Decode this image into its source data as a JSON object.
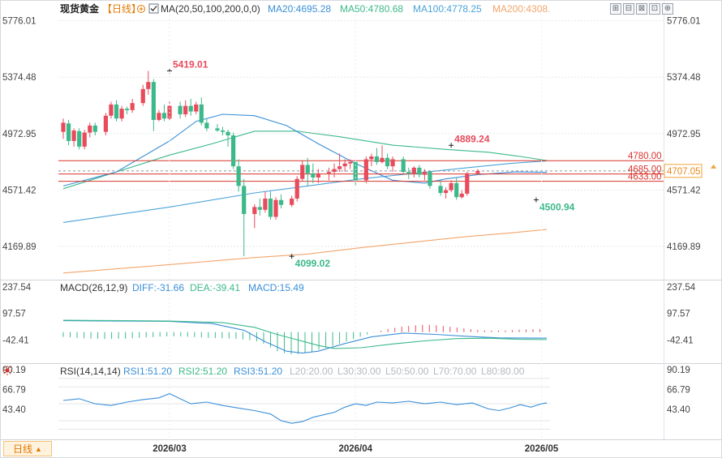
{
  "instrument": "现货黄金",
  "period": "日线",
  "ma_legend": {
    "label": "MA(20,50,100,200,0,0)",
    "items": [
      {
        "text": "MA20:4695.28",
        "color": "#3a8fd8"
      },
      {
        "text": "MA50:4780.68",
        "color": "#3cb98a"
      },
      {
        "text": "MA100:4778.25",
        "color": "#4aa3d9"
      },
      {
        "text": "MA200:4308.",
        "color": "#f3a56b"
      }
    ]
  },
  "macd_legend": {
    "label": "MACD(26,12,9)",
    "items": [
      {
        "text": "DIFF:-31.66",
        "color": "#3a8fd8"
      },
      {
        "text": "DEA:-39.41",
        "color": "#3cb98a"
      },
      {
        "text": "MACD:15.49",
        "color": "#3a8fd8"
      }
    ]
  },
  "rsi_legend": {
    "label": "RSI(14,14,14)",
    "items": [
      {
        "text": "RSI1:51.20",
        "color": "#3a8fd8"
      },
      {
        "text": "RSI2:51.20",
        "color": "#3cb98a"
      },
      {
        "text": "RSI3:51.20",
        "color": "#3a8fd8"
      },
      {
        "text": "L20:20.00",
        "color": "#b5b9be"
      },
      {
        "text": "L30:30.00",
        "color": "#b5b9be"
      },
      {
        "text": "L50:50.00",
        "color": "#b5b9be"
      },
      {
        "text": "L70:70.00",
        "color": "#b5b9be"
      },
      {
        "text": "L80:80.00",
        "color": "#b5b9be"
      }
    ]
  },
  "period_button": {
    "label": "日线",
    "arrow": "▲"
  },
  "toolbar_icons": [
    "zoom-in-icon",
    "zoom-out-icon",
    "fit-icon",
    "fullscreen-icon",
    "settings-icon"
  ],
  "colors": {
    "up": "#e84b5c",
    "down": "#3cb98a",
    "grid": "#e6e8ec",
    "line_red": "#d9342b"
  },
  "chart_data": {
    "type": "candlestick",
    "x_ticks": [
      "2026/03",
      "2026/04",
      "2026/05"
    ],
    "x_tick_index": [
      20,
      55,
      90
    ],
    "price_axis": {
      "ticks": [
        5776.01,
        5374.48,
        4972.95,
        4571.42,
        4169.89
      ],
      "ylim": [
        3950,
        5820
      ]
    },
    "candles": [
      {
        "o": 4985,
        "h": 5080,
        "l": 4935,
        "c": 5050
      },
      {
        "o": 5045,
        "h": 5070,
        "l": 4890,
        "c": 4920
      },
      {
        "o": 4920,
        "h": 5010,
        "l": 4880,
        "c": 4995
      },
      {
        "o": 4990,
        "h": 5010,
        "l": 4860,
        "c": 4880
      },
      {
        "o": 4880,
        "h": 5000,
        "l": 4860,
        "c": 4980
      },
      {
        "o": 4980,
        "h": 5050,
        "l": 4945,
        "c": 5030
      },
      {
        "o": 5030,
        "h": 5050,
        "l": 4960,
        "c": 4985
      },
      {
        "o": 4985,
        "h": 5120,
        "l": 4960,
        "c": 5100
      },
      {
        "o": 5100,
        "h": 5200,
        "l": 5080,
        "c": 5180
      },
      {
        "o": 5180,
        "h": 5210,
        "l": 5060,
        "c": 5080
      },
      {
        "o": 5080,
        "h": 5170,
        "l": 5060,
        "c": 5150
      },
      {
        "o": 5150,
        "h": 5165,
        "l": 5110,
        "c": 5140
      },
      {
        "o": 5140,
        "h": 5220,
        "l": 5120,
        "c": 5190
      },
      {
        "o": 5190,
        "h": 5320,
        "l": 5170,
        "c": 5290
      },
      {
        "o": 5290,
        "h": 5419.01,
        "l": 5250,
        "c": 5340
      },
      {
        "o": 5340,
        "h": 5360,
        "l": 4990,
        "c": 5070
      },
      {
        "o": 5070,
        "h": 5140,
        "l": 5060,
        "c": 5120
      },
      {
        "o": 5120,
        "h": 5180,
        "l": 5060,
        "c": 5080
      },
      {
        "o": 5080,
        "h": 5200,
        "l": 5060,
        "c": 5170
      },
      {
        "o": 5170,
        "h": 5200,
        "l": 5080,
        "c": 5110
      },
      {
        "o": 5110,
        "h": 5210,
        "l": 5090,
        "c": 5170
      },
      {
        "o": 5170,
        "h": 5220,
        "l": 5100,
        "c": 5130
      },
      {
        "o": 5130,
        "h": 5200,
        "l": 5110,
        "c": 5180
      },
      {
        "o": 5180,
        "h": 5230,
        "l": 5030,
        "c": 5050
      },
      {
        "o": 5050,
        "h": 5080,
        "l": 4990,
        "c": 5010
      },
      {
        "o": 5010,
        "h": 5040,
        "l": 4985,
        "c": 4995
      },
      {
        "o": 4995,
        "h": 5020,
        "l": 4960,
        "c": 4985
      },
      {
        "o": 4985,
        "h": 5000,
        "l": 4880,
        "c": 4960
      },
      {
        "o": 4960,
        "h": 4980,
        "l": 4720,
        "c": 4740
      },
      {
        "o": 4740,
        "h": 4790,
        "l": 4560,
        "c": 4600
      },
      {
        "o": 4600,
        "h": 4650,
        "l": 4099.02,
        "c": 4400
      },
      {
        "o": 4400,
        "h": 4470,
        "l": 4300,
        "c": 4450
      },
      {
        "o": 4450,
        "h": 4510,
        "l": 4390,
        "c": 4430
      },
      {
        "o": 4430,
        "h": 4560,
        "l": 4410,
        "c": 4510
      },
      {
        "o": 4510,
        "h": 4560,
        "l": 4360,
        "c": 4380
      },
      {
        "o": 4380,
        "h": 4520,
        "l": 4360,
        "c": 4500
      },
      {
        "o": 4500,
        "h": 4540,
        "l": 4440,
        "c": 4465
      },
      {
        "o": 4465,
        "h": 4530,
        "l": 4450,
        "c": 4510
      },
      {
        "o": 4510,
        "h": 4670,
        "l": 4490,
        "c": 4650
      },
      {
        "o": 4650,
        "h": 4780,
        "l": 4630,
        "c": 4750
      },
      {
        "o": 4750,
        "h": 4800,
        "l": 4600,
        "c": 4690
      },
      {
        "o": 4690,
        "h": 4760,
        "l": 4620,
        "c": 4660
      },
      {
        "o": 4660,
        "h": 4720,
        "l": 4620,
        "c": 4690
      },
      {
        "o": 4690,
        "h": 4730,
        "l": 4640,
        "c": 4700
      },
      {
        "o": 4700,
        "h": 4760,
        "l": 4660,
        "c": 4720
      },
      {
        "o": 4720,
        "h": 4830,
        "l": 4700,
        "c": 4740
      },
      {
        "o": 4740,
        "h": 4790,
        "l": 4700,
        "c": 4760
      },
      {
        "o": 4760,
        "h": 4790,
        "l": 4720,
        "c": 4770
      },
      {
        "o": 4770,
        "h": 4780,
        "l": 4600,
        "c": 4640
      },
      {
        "o": 4640,
        "h": 4810,
        "l": 4620,
        "c": 4790
      },
      {
        "o": 4790,
        "h": 4830,
        "l": 4740,
        "c": 4810
      },
      {
        "o": 4810,
        "h": 4870,
        "l": 4750,
        "c": 4770
      },
      {
        "o": 4770,
        "h": 4889.24,
        "l": 4760,
        "c": 4800
      },
      {
        "o": 4800,
        "h": 4830,
        "l": 4720,
        "c": 4740
      },
      {
        "o": 4740,
        "h": 4810,
        "l": 4700,
        "c": 4790
      },
      {
        "o": 4790,
        "h": 4810,
        "l": 4690,
        "c": 4700
      },
      {
        "o": 4700,
        "h": 4730,
        "l": 4650,
        "c": 4690
      },
      {
        "o": 4690,
        "h": 4740,
        "l": 4660,
        "c": 4730
      },
      {
        "o": 4730,
        "h": 4750,
        "l": 4660,
        "c": 4680
      },
      {
        "o": 4680,
        "h": 4720,
        "l": 4640,
        "c": 4700
      },
      {
        "o": 4700,
        "h": 4710,
        "l": 4580,
        "c": 4600
      },
      {
        "o": 4600,
        "h": 4640,
        "l": 4530,
        "c": 4550
      },
      {
        "o": 4550,
        "h": 4590,
        "l": 4510,
        "c": 4570
      },
      {
        "o": 4570,
        "h": 4640,
        "l": 4555,
        "c": 4620
      },
      {
        "o": 4620,
        "h": 4660,
        "l": 4500.94,
        "c": 4520
      },
      {
        "o": 4520,
        "h": 4570,
        "l": 4510,
        "c": 4545
      },
      {
        "o": 4545,
        "h": 4700,
        "l": 4530,
        "c": 4690
      },
      {
        "o": 4690,
        "h": 4720,
        "l": 4680,
        "c": 4707
      }
    ],
    "candle_slots": [
      0,
      1,
      2,
      3,
      4,
      5,
      6,
      8,
      9,
      10,
      11,
      12,
      13,
      15,
      16,
      17,
      18,
      19,
      20,
      22,
      23,
      24,
      25,
      26,
      27,
      29,
      30,
      31,
      32,
      33,
      34,
      36,
      37,
      38,
      39,
      40,
      41,
      43,
      44,
      45,
      46,
      47,
      48,
      50,
      51,
      52,
      53,
      54,
      55,
      57,
      58,
      59,
      60,
      61,
      62,
      64,
      65,
      66,
      67,
      68,
      69,
      71,
      72,
      73,
      74,
      75,
      76,
      78
    ],
    "annotations": [
      {
        "label": "5419.01",
        "value": 5419.01,
        "slot": 20,
        "color": "#e84b5c"
      },
      {
        "label": "4889.24",
        "value": 4889.24,
        "slot": 73,
        "color": "#e84b5c"
      },
      {
        "label": "4099.02",
        "value": 4099.02,
        "slot": 43,
        "color": "#3cb98a"
      },
      {
        "label": "4500.94",
        "value": 4500.94,
        "slot": 89,
        "color": "#3cb98a"
      }
    ],
    "h_lines": [
      {
        "value": 4780.0,
        "label": "4780.00"
      },
      {
        "value": 4685.0,
        "label": "4685.00"
      },
      {
        "value": 4633.0,
        "label": "4633.00"
      }
    ],
    "current": {
      "value": 4707.05,
      "label": "4707.05"
    },
    "ma_lines": {
      "ma20": [
        [
          0,
          4600
        ],
        [
          10,
          4700
        ],
        [
          20,
          4920
        ],
        [
          25,
          5060
        ],
        [
          30,
          5110
        ],
        [
          36,
          5100
        ],
        [
          42,
          5030
        ],
        [
          48,
          4900
        ],
        [
          55,
          4760
        ],
        [
          62,
          4640
        ],
        [
          68,
          4620
        ],
        [
          72,
          4650
        ],
        [
          78,
          4680
        ],
        [
          85,
          4700
        ],
        [
          91,
          4697
        ]
      ],
      "ma50": [
        [
          0,
          4580
        ],
        [
          10,
          4700
        ],
        [
          20,
          4820
        ],
        [
          28,
          4900
        ],
        [
          36,
          4990
        ],
        [
          44,
          4990
        ],
        [
          52,
          4950
        ],
        [
          62,
          4890
        ],
        [
          72,
          4860
        ],
        [
          80,
          4840
        ],
        [
          86,
          4810
        ],
        [
          91,
          4781
        ]
      ],
      "ma100": [
        [
          0,
          4340
        ],
        [
          20,
          4450
        ],
        [
          36,
          4550
        ],
        [
          46,
          4600
        ],
        [
          56,
          4650
        ],
        [
          66,
          4690
        ],
        [
          76,
          4730
        ],
        [
          84,
          4760
        ],
        [
          91,
          4778
        ]
      ],
      "ma200": [
        [
          0,
          3980
        ],
        [
          20,
          4040
        ],
        [
          36,
          4090
        ],
        [
          46,
          4115
        ],
        [
          56,
          4160
        ],
        [
          66,
          4200
        ],
        [
          76,
          4240
        ],
        [
          84,
          4265
        ],
        [
          91,
          4290
        ]
      ]
    },
    "macd": {
      "ticks": [
        237.54,
        97.57,
        -42.41
      ],
      "ylim": [
        -150,
        275
      ],
      "hist": [
        -25,
        -27,
        -30,
        -32,
        -34,
        -35,
        -36,
        -36,
        -35,
        -34,
        -32,
        -30,
        -28,
        -26,
        -24,
        -22,
        -22,
        -23,
        -24,
        -26,
        -28,
        -30,
        -31,
        -32,
        -33,
        -35,
        -38,
        -42,
        -48,
        -60,
        -80,
        -100,
        -110,
        -116,
        -115,
        -110,
        -102,
        -92,
        -82,
        -72,
        -60,
        -48,
        -36,
        -24,
        -12,
        -2,
        8,
        16,
        22,
        28,
        32,
        36,
        38,
        38,
        36,
        32,
        28,
        24,
        20,
        16,
        12,
        9,
        8,
        8,
        9,
        11,
        13,
        14,
        15,
        15.49
      ],
      "diff": [
        [
          0,
          60
        ],
        [
          12,
          58
        ],
        [
          20,
          56
        ],
        [
          28,
          45
        ],
        [
          34,
          10
        ],
        [
          38,
          -50
        ],
        [
          42,
          -100
        ],
        [
          45,
          -110
        ],
        [
          48,
          -100
        ],
        [
          53,
          -60
        ],
        [
          58,
          -25
        ],
        [
          64,
          -5
        ],
        [
          70,
          -12
        ],
        [
          76,
          -22
        ],
        [
          82,
          -30
        ],
        [
          91,
          -31.66
        ]
      ],
      "dea": [
        [
          0,
          62
        ],
        [
          12,
          60
        ],
        [
          20,
          58
        ],
        [
          30,
          50
        ],
        [
          36,
          25
        ],
        [
          40,
          -10
        ],
        [
          44,
          -40
        ],
        [
          48,
          -70
        ],
        [
          51,
          -86
        ],
        [
          56,
          -82
        ],
        [
          62,
          -62
        ],
        [
          68,
          -46
        ],
        [
          74,
          -34
        ],
        [
          80,
          -32
        ],
        [
          86,
          -38
        ],
        [
          91,
          -39.41
        ]
      ]
    },
    "rsi": {
      "ticks": [
        90.19,
        66.79,
        43.4
      ],
      "ylim": [
        8,
        98
      ],
      "levels": [
        20,
        30,
        50,
        70,
        80
      ],
      "values": [
        [
          0,
          54
        ],
        [
          3,
          56
        ],
        [
          6,
          50
        ],
        [
          9,
          48
        ],
        [
          12,
          52
        ],
        [
          15,
          55
        ],
        [
          18,
          57
        ],
        [
          20,
          62
        ],
        [
          22,
          56
        ],
        [
          24,
          50
        ],
        [
          27,
          52
        ],
        [
          30,
          48
        ],
        [
          33,
          45
        ],
        [
          36,
          42
        ],
        [
          39,
          38
        ],
        [
          41,
          30
        ],
        [
          43,
          27
        ],
        [
          45,
          29
        ],
        [
          47,
          34
        ],
        [
          49,
          37
        ],
        [
          51,
          40
        ],
        [
          53,
          46
        ],
        [
          55,
          50
        ],
        [
          57,
          48
        ],
        [
          59,
          52
        ],
        [
          62,
          51
        ],
        [
          65,
          53
        ],
        [
          68,
          50
        ],
        [
          71,
          52
        ],
        [
          74,
          49
        ],
        [
          77,
          51
        ],
        [
          80,
          44
        ],
        [
          82,
          42
        ],
        [
          84,
          45
        ],
        [
          86,
          49
        ],
        [
          88,
          46
        ],
        [
          90,
          50
        ],
        [
          91,
          51.2
        ]
      ]
    }
  }
}
